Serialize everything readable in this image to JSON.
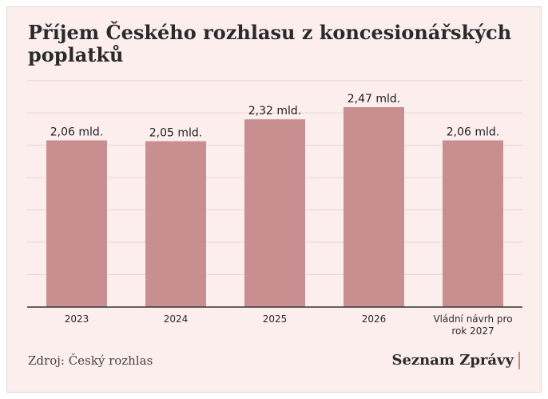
{
  "chart_data": {
    "type": "bar",
    "title": "Příjem Českého rozhlasu z koncesionářských poplatků",
    "categories": [
      "2023",
      "2024",
      "2025",
      "2026",
      "Vládní návrh pro rok 2027"
    ],
    "values": [
      2.06,
      2.05,
      2.32,
      2.47,
      2.06
    ],
    "data_labels": [
      "2,06 mld.",
      "2,05 mld.",
      "2,32 mld.",
      "2,47 mld.",
      "2,06 mld."
    ],
    "xlabel": "",
    "ylabel": "",
    "ylim": [
      0,
      2.8
    ],
    "grid": true,
    "legend": "none"
  },
  "source": "Zdroj: Český rozhlas",
  "brand": "Seznam Zprávy",
  "colors": {
    "bar": "#c98f90",
    "background": "#fdeeee",
    "grid": "#e6d3d3",
    "axis": "#333333"
  }
}
